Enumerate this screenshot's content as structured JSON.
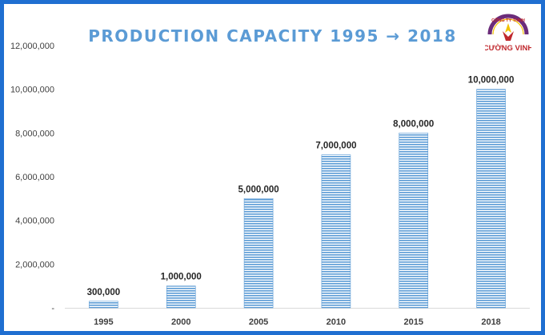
{
  "chart_data": {
    "type": "bar",
    "title": "PRODUCTION CAPACITY 1995 → 2018",
    "xlabel": "",
    "ylabel": "",
    "categories": [
      "1995",
      "2000",
      "2005",
      "2010",
      "2015",
      "2018"
    ],
    "values": [
      300000,
      1000000,
      5000000,
      7000000,
      8000000,
      10000000
    ],
    "data_labels": [
      "300,000",
      "1,000,000",
      "5,000,000",
      "7,000,000",
      "8,000,000",
      "10,000,000"
    ],
    "ylim": [
      0,
      12000000
    ],
    "y_ticks": [
      0,
      2000000,
      4000000,
      6000000,
      8000000,
      10000000,
      12000000
    ],
    "y_tick_labels": [
      "-",
      "2,000,000",
      "4,000,000",
      "6,000,000",
      "8,000,000",
      "10,000,000",
      "12,000,000"
    ],
    "grid": false,
    "legend": "none",
    "bar_fill": "horizontal-stripes",
    "colors": {
      "bar": "#5b9bd5",
      "title": "#5b9bd5",
      "border": "#1f6fd1"
    }
  },
  "logo": {
    "text_top": "CÔNG TY TNHH",
    "text_bottom": "CƯỜNG VINH",
    "colors": {
      "ring": "#6b2c7a",
      "text": "#c0282d",
      "accent": "#f2c200"
    }
  }
}
